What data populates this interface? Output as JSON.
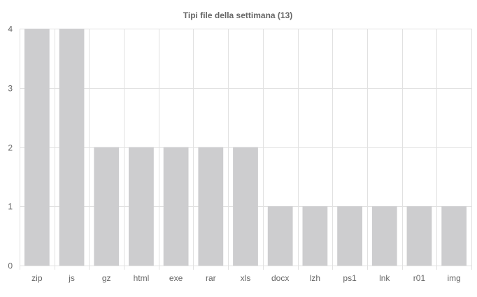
{
  "chart_data": {
    "type": "bar",
    "title": "Tipi file della settimana (13)",
    "categories": [
      "zip",
      "js",
      "gz",
      "html",
      "exe",
      "rar",
      "xls",
      "docx",
      "lzh",
      "ps1",
      "lnk",
      "r01",
      "img"
    ],
    "values": [
      4,
      4,
      2,
      2,
      2,
      2,
      2,
      1,
      1,
      1,
      1,
      1,
      1
    ],
    "ylim": [
      0,
      4
    ],
    "yticks": [
      0,
      1,
      2,
      3,
      4
    ],
    "grid": true,
    "legend": "none",
    "colors": {
      "bar": "#cdcdcf",
      "grid": "#e1e1e1",
      "text": "#666666"
    }
  }
}
